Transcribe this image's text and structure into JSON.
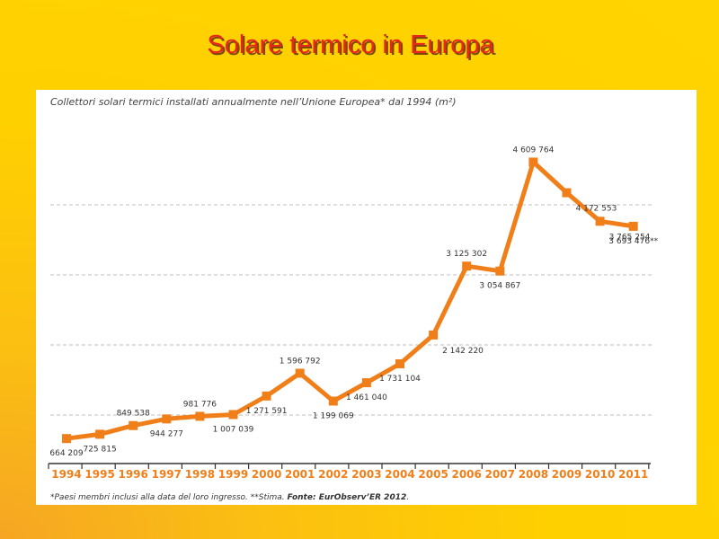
{
  "slide": {
    "title": "Solare termico in Europa"
  },
  "chart_data": {
    "type": "line",
    "subtitle": "Collettori solari termici installati annualmente nell’Unione Europea* dal 1994 (m²)",
    "categories": [
      "1994",
      "1995",
      "1996",
      "1997",
      "1998",
      "1999",
      "2000",
      "2001",
      "2002",
      "2003",
      "2004",
      "2005",
      "2006",
      "2007",
      "2008",
      "2009",
      "2010",
      "2011"
    ],
    "series": [
      {
        "values": [
          664209,
          725815,
          849538,
          944277,
          981776,
          1007039,
          1271591,
          1596792,
          1199069,
          1461040,
          1731104,
          2142220,
          3125302,
          3054867,
          4609764,
          4172553,
          3765254,
          3693476
        ]
      }
    ],
    "value_labels": [
      "664 209",
      "725 815",
      "849 538",
      "944 277",
      "981 776",
      "1 007 039",
      "1 271 591",
      "1 596 792",
      "1 199 069",
      "1 461 040",
      "1 731 104",
      "2 142 220",
      "3 125 302",
      "3 054 867",
      "4 609 764",
      "4 172 553",
      "3 765 254",
      "3 693 476**"
    ],
    "label_positions": [
      "below",
      "below",
      "above",
      "below",
      "above",
      "below",
      "below",
      "above",
      "below",
      "below",
      "below",
      "right",
      "above",
      "below",
      "above",
      "right",
      "right",
      "below"
    ],
    "ylim": [
      0,
      5000000
    ],
    "grid": true,
    "line_color": "#f07f1a",
    "grid_color": "#aaaaaa",
    "footnote": {
      "text": "*Paesi membri inclusi alla data del loro ingresso. **Stima. ",
      "source": "Fonte: EurObserv’ER 2012",
      "end": "."
    }
  }
}
